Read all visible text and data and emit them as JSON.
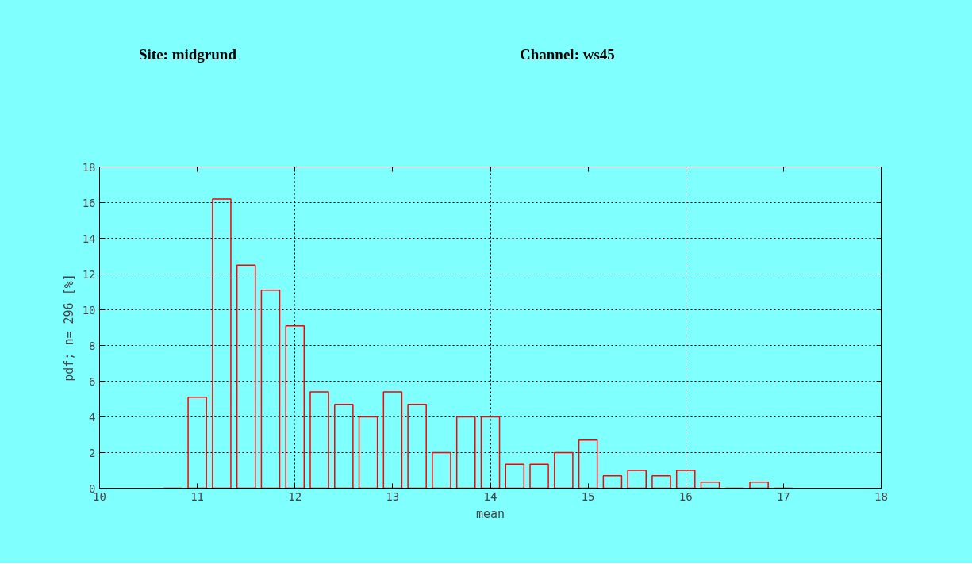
{
  "chart_data": {
    "type": "bar",
    "title": "Site: midgrund",
    "subtitle": "Channel: ws45",
    "xlabel": "mean",
    "ylabel": "pdf; n= 296 [%]",
    "x": [
      10.75,
      11,
      11.25,
      11.5,
      11.75,
      12,
      12.25,
      12.5,
      12.75,
      13,
      13.25,
      13.5,
      13.75,
      14,
      14.25,
      14.5,
      14.75,
      15,
      15.25,
      15.5,
      15.75,
      16,
      16.25,
      16.5,
      16.75,
      17
    ],
    "series": [
      {
        "color": "#ff0000",
        "values": [
          0,
          5.1,
          16.2,
          12.5,
          11.1,
          9.1,
          5.4,
          4.7,
          4.0,
          5.4,
          4.7,
          2.0,
          4.0,
          4.0,
          1.35,
          1.35,
          2.0,
          2.7,
          0.7,
          1.0,
          0.7,
          1.0,
          0.35,
          0,
          0.35,
          0
        ]
      }
    ],
    "xlim": [
      10,
      18
    ],
    "xticks": [
      10,
      11,
      12,
      13,
      14,
      15,
      16,
      17,
      18
    ],
    "ylim": [
      0,
      18
    ],
    "yticks": [
      0,
      2,
      4,
      6,
      8,
      10,
      12,
      14,
      16,
      18
    ],
    "grid": true,
    "line_style": "dotted"
  }
}
